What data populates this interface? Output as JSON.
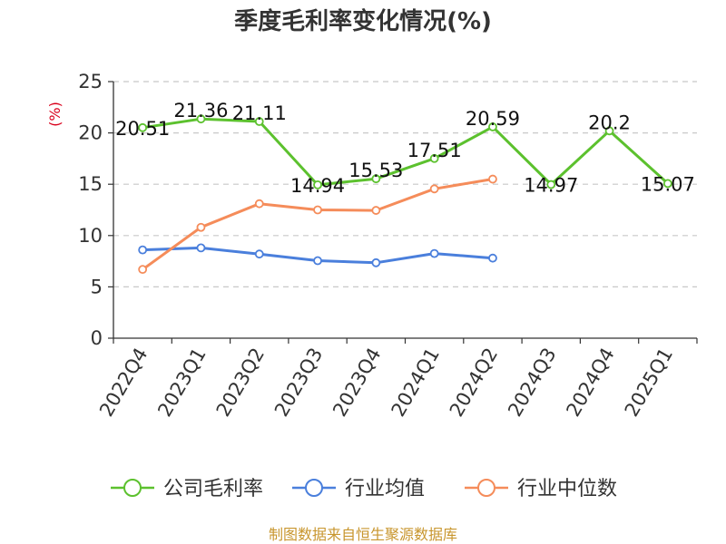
{
  "chart_data": {
    "type": "line",
    "title": "季度毛利率变化情况(%)",
    "ylabel": "(%)",
    "ylim": [
      0,
      25
    ],
    "yticks": [
      0,
      5,
      10,
      15,
      20,
      25
    ],
    "grid": true,
    "legend_position": "bottom",
    "categories": [
      "2022Q4",
      "2023Q1",
      "2023Q2",
      "2023Q3",
      "2023Q4",
      "2024Q1",
      "2024Q2",
      "2024Q3",
      "2024Q4",
      "2025Q1"
    ],
    "series": [
      {
        "name": "公司毛利率",
        "color": "#5cc12e",
        "values": [
          20.51,
          21.36,
          21.11,
          14.94,
          15.53,
          17.51,
          20.59,
          14.97,
          20.2,
          15.07
        ],
        "labels": [
          "20.51",
          "21.36",
          "21.11",
          "14.94",
          "15.53",
          "17.51",
          "20.59",
          "14.97",
          "20.2",
          "15.07"
        ]
      },
      {
        "name": "行业均值",
        "color": "#4a7fdc",
        "values": [
          8.6,
          8.8,
          8.2,
          7.55,
          7.35,
          8.25,
          7.8,
          null,
          null,
          null
        ]
      },
      {
        "name": "行业中位数",
        "color": "#f58c5a",
        "values": [
          6.7,
          10.8,
          13.1,
          12.5,
          12.45,
          14.55,
          15.5,
          null,
          null,
          null
        ]
      }
    ],
    "source": "制图数据来自恒生聚源数据库"
  }
}
